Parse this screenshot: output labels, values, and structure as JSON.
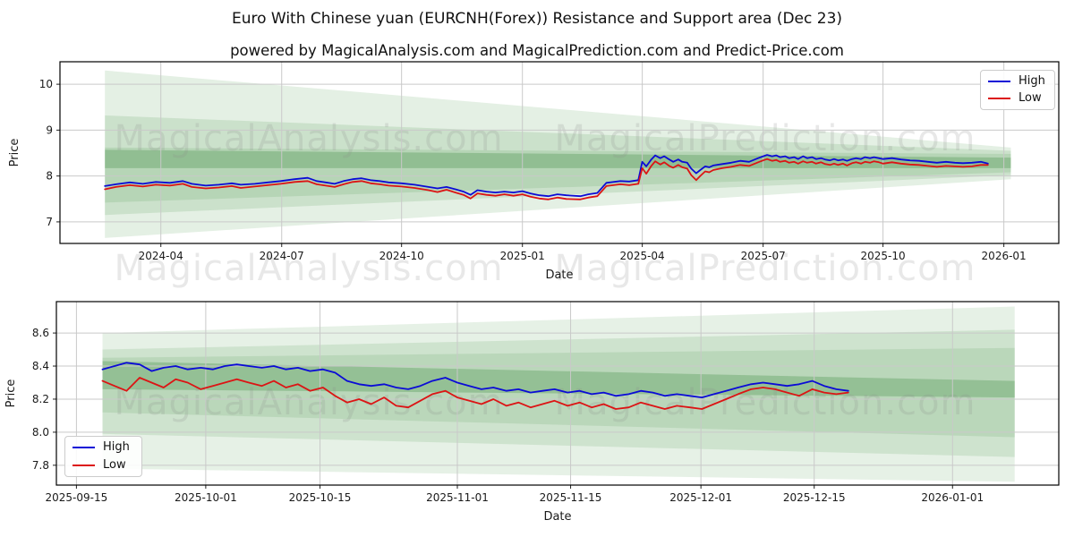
{
  "figure": {
    "title": "Euro With Chinese yuan (EURCNH(Forex)) Resistance and Support area (Dec 23)",
    "subtitle": "powered by MagicalAnalysis.com and MagicalPrediction.com and Predict-Price.com"
  },
  "watermarks": [
    "MagicalAnalysis.com",
    "MagicalPrediction.com"
  ],
  "colors": {
    "high_line": "#0b0bd6",
    "low_line": "#dc1414",
    "band_green": "#57a05a",
    "band_green_dark": "#3c8c40",
    "grid": "#c9c9c9"
  },
  "chart_data": [
    {
      "type": "line",
      "name": "overview-chart",
      "xlabel": "Date",
      "ylabel": "Price",
      "ylim": [
        6.53,
        10.49
      ],
      "yticks": [
        {
          "v": 7,
          "label": "7"
        },
        {
          "v": 8,
          "label": "8"
        },
        {
          "v": 9,
          "label": "9"
        },
        {
          "v": 10,
          "label": "10"
        }
      ],
      "xticks": [
        {
          "f": 0.101,
          "label": "2024-04"
        },
        {
          "f": 0.222,
          "label": "2024-07"
        },
        {
          "f": 0.342,
          "label": "2024-10"
        },
        {
          "f": 0.463,
          "label": "2025-01"
        },
        {
          "f": 0.583,
          "label": "2025-04"
        },
        {
          "f": 0.704,
          "label": "2025-07"
        },
        {
          "f": 0.824,
          "label": "2025-10"
        },
        {
          "f": 0.945,
          "label": "2026-01"
        }
      ],
      "series": [
        {
          "name": "High",
          "color": "#0b0bd6"
        },
        {
          "name": "Low",
          "color": "#dc1414"
        }
      ],
      "series_date_range": [
        "2024-02-18",
        "2025-12-22"
      ],
      "bands": [
        {
          "x0": 0.045,
          "x1": 0.952,
          "top": [
            10.3,
            8.62
          ],
          "bottom": [
            6.65,
            7.93
          ],
          "color": "#57a05a",
          "opacity": 0.16
        },
        {
          "x0": 0.045,
          "x1": 0.952,
          "top": [
            9.32,
            8.55
          ],
          "bottom": [
            7.15,
            8.02
          ],
          "color": "#57a05a",
          "opacity": 0.18
        },
        {
          "x0": 0.045,
          "x1": 0.952,
          "top": [
            8.62,
            8.48
          ],
          "bottom": [
            7.42,
            8.08
          ],
          "color": "#57a05a",
          "opacity": 0.18
        },
        {
          "x0": 0.045,
          "x1": 0.952,
          "top": [
            8.57,
            8.4
          ],
          "bottom": [
            8.17,
            8.17
          ],
          "color": "#3c8c40",
          "opacity": 0.3
        }
      ],
      "points": [
        [
          0.045,
          7.78,
          7.71
        ],
        [
          0.056,
          7.82,
          7.76
        ],
        [
          0.07,
          7.86,
          7.8
        ],
        [
          0.083,
          7.83,
          7.77
        ],
        [
          0.096,
          7.87,
          7.81
        ],
        [
          0.11,
          7.85,
          7.79
        ],
        [
          0.123,
          7.89,
          7.83
        ],
        [
          0.132,
          7.83,
          7.76
        ],
        [
          0.146,
          7.79,
          7.73
        ],
        [
          0.159,
          7.81,
          7.75
        ],
        [
          0.172,
          7.84,
          7.78
        ],
        [
          0.181,
          7.81,
          7.74
        ],
        [
          0.195,
          7.83,
          7.77
        ],
        [
          0.208,
          7.86,
          7.8
        ],
        [
          0.221,
          7.89,
          7.83
        ],
        [
          0.235,
          7.93,
          7.87
        ],
        [
          0.248,
          7.96,
          7.89
        ],
        [
          0.257,
          7.89,
          7.82
        ],
        [
          0.266,
          7.86,
          7.79
        ],
        [
          0.275,
          7.83,
          7.76
        ],
        [
          0.284,
          7.89,
          7.82
        ],
        [
          0.293,
          7.93,
          7.87
        ],
        [
          0.302,
          7.95,
          7.89
        ],
        [
          0.311,
          7.91,
          7.84
        ],
        [
          0.32,
          7.89,
          7.82
        ],
        [
          0.329,
          7.86,
          7.79
        ],
        [
          0.342,
          7.84,
          7.77
        ],
        [
          0.355,
          7.81,
          7.74
        ],
        [
          0.369,
          7.76,
          7.69
        ],
        [
          0.378,
          7.73,
          7.65
        ],
        [
          0.387,
          7.76,
          7.7
        ],
        [
          0.396,
          7.71,
          7.64
        ],
        [
          0.404,
          7.66,
          7.59
        ],
        [
          0.411,
          7.59,
          7.51
        ],
        [
          0.418,
          7.69,
          7.62
        ],
        [
          0.427,
          7.66,
          7.59
        ],
        [
          0.436,
          7.64,
          7.57
        ],
        [
          0.445,
          7.66,
          7.6
        ],
        [
          0.454,
          7.64,
          7.57
        ],
        [
          0.463,
          7.67,
          7.6
        ],
        [
          0.471,
          7.62,
          7.55
        ],
        [
          0.48,
          7.58,
          7.51
        ],
        [
          0.489,
          7.56,
          7.49
        ],
        [
          0.498,
          7.6,
          7.53
        ],
        [
          0.507,
          7.58,
          7.5
        ],
        [
          0.521,
          7.56,
          7.49
        ],
        [
          0.529,
          7.6,
          7.53
        ],
        [
          0.538,
          7.63,
          7.56
        ],
        [
          0.547,
          7.85,
          7.78
        ],
        [
          0.561,
          7.89,
          7.82
        ],
        [
          0.57,
          7.88,
          7.8
        ],
        [
          0.579,
          7.91,
          7.83
        ],
        [
          0.583,
          8.31,
          8.17
        ],
        [
          0.587,
          8.21,
          8.05
        ],
        [
          0.592,
          8.36,
          8.22
        ],
        [
          0.596,
          8.45,
          8.32
        ],
        [
          0.601,
          8.39,
          8.25
        ],
        [
          0.605,
          8.43,
          8.3
        ],
        [
          0.61,
          8.36,
          8.22
        ],
        [
          0.614,
          8.31,
          8.18
        ],
        [
          0.619,
          8.36,
          8.24
        ],
        [
          0.623,
          8.31,
          8.19
        ],
        [
          0.628,
          8.29,
          8.16
        ],
        [
          0.632,
          8.16,
          8.02
        ],
        [
          0.637,
          8.06,
          7.91
        ],
        [
          0.641,
          8.13,
          8.0
        ],
        [
          0.646,
          8.21,
          8.1
        ],
        [
          0.65,
          8.19,
          8.08
        ],
        [
          0.654,
          8.23,
          8.13
        ],
        [
          0.663,
          8.26,
          8.17
        ],
        [
          0.672,
          8.29,
          8.2
        ],
        [
          0.681,
          8.33,
          8.24
        ],
        [
          0.69,
          8.31,
          8.22
        ],
        [
          0.699,
          8.39,
          8.3
        ],
        [
          0.704,
          8.43,
          8.34
        ],
        [
          0.708,
          8.46,
          8.37
        ],
        [
          0.713,
          8.43,
          8.33
        ],
        [
          0.717,
          8.45,
          8.35
        ],
        [
          0.721,
          8.41,
          8.31
        ],
        [
          0.726,
          8.43,
          8.33
        ],
        [
          0.73,
          8.39,
          8.29
        ],
        [
          0.735,
          8.41,
          8.31
        ],
        [
          0.739,
          8.37,
          8.27
        ],
        [
          0.744,
          8.43,
          8.32
        ],
        [
          0.748,
          8.39,
          8.29
        ],
        [
          0.753,
          8.41,
          8.31
        ],
        [
          0.757,
          8.37,
          8.27
        ],
        [
          0.762,
          8.39,
          8.3
        ],
        [
          0.766,
          8.36,
          8.26
        ],
        [
          0.771,
          8.34,
          8.24
        ],
        [
          0.775,
          8.37,
          8.27
        ],
        [
          0.779,
          8.34,
          8.24
        ],
        [
          0.784,
          8.36,
          8.27
        ],
        [
          0.788,
          8.33,
          8.23
        ],
        [
          0.793,
          8.37,
          8.28
        ],
        [
          0.797,
          8.39,
          8.3
        ],
        [
          0.802,
          8.37,
          8.27
        ],
        [
          0.806,
          8.41,
          8.31
        ],
        [
          0.811,
          8.39,
          8.29
        ],
        [
          0.815,
          8.41,
          8.32
        ],
        [
          0.82,
          8.39,
          8.3
        ],
        [
          0.824,
          8.37,
          8.27
        ],
        [
          0.833,
          8.39,
          8.3
        ],
        [
          0.842,
          8.36,
          8.27
        ],
        [
          0.851,
          8.34,
          8.25
        ],
        [
          0.86,
          8.33,
          8.24
        ],
        [
          0.869,
          8.31,
          8.22
        ],
        [
          0.878,
          8.29,
          8.2
        ],
        [
          0.887,
          8.31,
          8.22
        ],
        [
          0.896,
          8.29,
          8.21
        ],
        [
          0.904,
          8.28,
          8.2
        ],
        [
          0.913,
          8.29,
          8.21
        ],
        [
          0.922,
          8.31,
          8.24
        ],
        [
          0.929,
          8.27,
          8.24
        ]
      ]
    },
    {
      "type": "line",
      "name": "recent-chart",
      "xlabel": "Date",
      "ylabel": "Price",
      "ylim": [
        7.68,
        8.79
      ],
      "yticks": [
        {
          "v": 7.8,
          "label": "7.8"
        },
        {
          "v": 8.0,
          "label": "8.0"
        },
        {
          "v": 8.2,
          "label": "8.2"
        },
        {
          "v": 8.4,
          "label": "8.4"
        },
        {
          "v": 8.6,
          "label": "8.6"
        }
      ],
      "xticks": [
        {
          "f": 0.02,
          "label": "2025-09-15"
        },
        {
          "f": 0.149,
          "label": "2025-10-01"
        },
        {
          "f": 0.263,
          "label": "2025-10-15"
        },
        {
          "f": 0.4,
          "label": "2025-11-01"
        },
        {
          "f": 0.513,
          "label": "2025-11-15"
        },
        {
          "f": 0.643,
          "label": "2025-12-01"
        },
        {
          "f": 0.756,
          "label": "2025-12-15"
        },
        {
          "f": 0.894,
          "label": "2026-01-01"
        }
      ],
      "series": [
        {
          "name": "High",
          "color": "#0b0bd6"
        },
        {
          "name": "Low",
          "color": "#dc1414"
        }
      ],
      "series_date_range": [
        "2025-09-17",
        "2025-12-19"
      ],
      "bands": [
        {
          "x0": 0.046,
          "x1": 0.956,
          "top": [
            8.6,
            8.76
          ],
          "bottom": [
            7.78,
            7.7
          ],
          "color": "#57a05a",
          "opacity": 0.15
        },
        {
          "x0": 0.046,
          "x1": 0.956,
          "top": [
            8.5,
            8.62
          ],
          "bottom": [
            7.99,
            7.85
          ],
          "color": "#57a05a",
          "opacity": 0.17
        },
        {
          "x0": 0.046,
          "x1": 0.956,
          "top": [
            8.45,
            8.51
          ],
          "bottom": [
            8.12,
            7.97
          ],
          "color": "#57a05a",
          "opacity": 0.17
        },
        {
          "x0": 0.046,
          "x1": 0.956,
          "top": [
            8.43,
            8.31
          ],
          "bottom": [
            8.26,
            8.21
          ],
          "color": "#3c8c40",
          "opacity": 0.3
        }
      ],
      "points": [
        [
          0.046,
          8.38,
          8.31
        ],
        [
          0.058,
          8.4,
          8.28
        ],
        [
          0.07,
          8.42,
          8.25
        ],
        [
          0.083,
          8.41,
          8.33
        ],
        [
          0.095,
          8.37,
          8.3
        ],
        [
          0.107,
          8.39,
          8.27
        ],
        [
          0.119,
          8.4,
          8.32
        ],
        [
          0.131,
          8.38,
          8.3
        ],
        [
          0.144,
          8.39,
          8.26
        ],
        [
          0.156,
          8.38,
          8.28
        ],
        [
          0.168,
          8.4,
          8.3
        ],
        [
          0.18,
          8.41,
          8.32
        ],
        [
          0.192,
          8.4,
          8.3
        ],
        [
          0.205,
          8.39,
          8.28
        ],
        [
          0.217,
          8.4,
          8.31
        ],
        [
          0.229,
          8.38,
          8.27
        ],
        [
          0.241,
          8.39,
          8.29
        ],
        [
          0.253,
          8.37,
          8.25
        ],
        [
          0.266,
          8.38,
          8.27
        ],
        [
          0.278,
          8.36,
          8.22
        ],
        [
          0.29,
          8.31,
          8.18
        ],
        [
          0.302,
          8.29,
          8.2
        ],
        [
          0.314,
          8.28,
          8.17
        ],
        [
          0.327,
          8.29,
          8.21
        ],
        [
          0.339,
          8.27,
          8.16
        ],
        [
          0.351,
          8.26,
          8.15
        ],
        [
          0.363,
          8.28,
          8.19
        ],
        [
          0.375,
          8.31,
          8.23
        ],
        [
          0.388,
          8.33,
          8.25
        ],
        [
          0.4,
          8.3,
          8.21
        ],
        [
          0.412,
          8.28,
          8.19
        ],
        [
          0.424,
          8.26,
          8.17
        ],
        [
          0.436,
          8.27,
          8.2
        ],
        [
          0.449,
          8.25,
          8.16
        ],
        [
          0.461,
          8.26,
          8.18
        ],
        [
          0.473,
          8.24,
          8.15
        ],
        [
          0.485,
          8.25,
          8.17
        ],
        [
          0.497,
          8.26,
          8.19
        ],
        [
          0.51,
          8.24,
          8.16
        ],
        [
          0.522,
          8.25,
          8.18
        ],
        [
          0.534,
          8.23,
          8.15
        ],
        [
          0.546,
          8.24,
          8.17
        ],
        [
          0.558,
          8.22,
          8.14
        ],
        [
          0.571,
          8.23,
          8.15
        ],
        [
          0.583,
          8.25,
          8.18
        ],
        [
          0.595,
          8.24,
          8.16
        ],
        [
          0.607,
          8.22,
          8.14
        ],
        [
          0.619,
          8.23,
          8.16
        ],
        [
          0.632,
          8.22,
          8.15
        ],
        [
          0.644,
          8.21,
          8.14
        ],
        [
          0.656,
          8.23,
          8.17
        ],
        [
          0.668,
          8.25,
          8.2
        ],
        [
          0.68,
          8.27,
          8.23
        ],
        [
          0.693,
          8.29,
          8.26
        ],
        [
          0.705,
          8.3,
          8.27
        ],
        [
          0.717,
          8.29,
          8.26
        ],
        [
          0.729,
          8.28,
          8.24
        ],
        [
          0.741,
          8.29,
          8.22
        ],
        [
          0.754,
          8.31,
          8.26
        ],
        [
          0.766,
          8.28,
          8.24
        ],
        [
          0.778,
          8.26,
          8.23
        ],
        [
          0.79,
          8.25,
          8.24
        ]
      ]
    }
  ]
}
